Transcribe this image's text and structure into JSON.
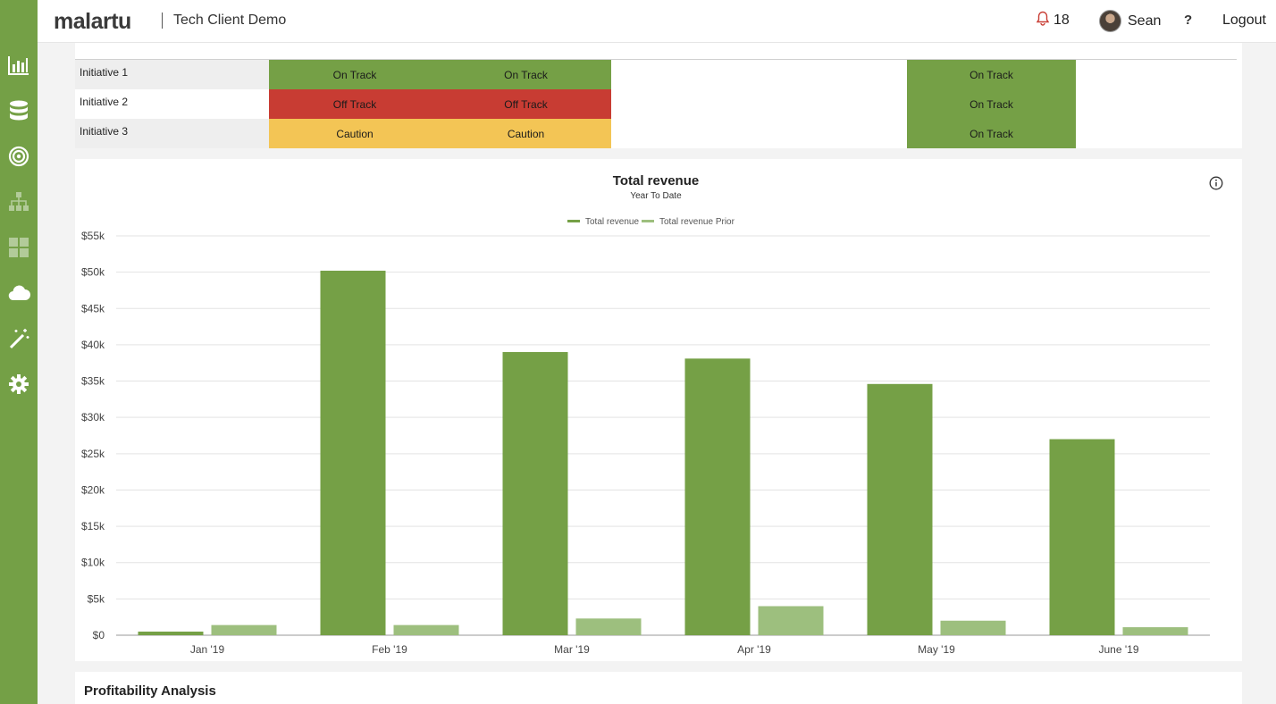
{
  "header": {
    "logo_text": "malartu",
    "client_name": "Tech Client Demo",
    "notification_count": "18",
    "user_name": "Sean",
    "help_label": "?",
    "logout_label": "Logout"
  },
  "sidebar": {
    "items": [
      {
        "icon": "bar-chart-icon"
      },
      {
        "icon": "database-icon"
      },
      {
        "icon": "target-icon"
      },
      {
        "icon": "org-chart-icon"
      },
      {
        "icon": "grid-icon"
      },
      {
        "icon": "cloud-icon"
      },
      {
        "icon": "magic-wand-icon"
      },
      {
        "icon": "gear-icon"
      }
    ]
  },
  "initiatives": {
    "rows": [
      {
        "label": "Initiative 1",
        "cells": [
          {
            "text": "On Track",
            "status": "green"
          },
          {
            "text": "On Track",
            "status": "green"
          },
          {
            "text": "On Track",
            "status": "green"
          }
        ]
      },
      {
        "label": "Initiative 2",
        "cells": [
          {
            "text": "Off Track",
            "status": "red"
          },
          {
            "text": "Off Track",
            "status": "red"
          },
          {
            "text": "On Track",
            "status": "green"
          }
        ]
      },
      {
        "label": "Initiative 3",
        "cells": [
          {
            "text": "Caution",
            "status": "yellow"
          },
          {
            "text": "Caution",
            "status": "yellow"
          },
          {
            "text": "On Track",
            "status": "green"
          }
        ]
      }
    ],
    "colors": {
      "green": "#75a046",
      "red": "#c83c33",
      "yellow": "#f3c555"
    }
  },
  "chart_data": {
    "type": "bar",
    "title": "Total revenue",
    "subtitle": "Year To Date",
    "categories": [
      "Jan '19",
      "Feb '19",
      "Mar '19",
      "Apr '19",
      "May '19",
      "June '19"
    ],
    "series": [
      {
        "name": "Total revenue",
        "color": "#75a046",
        "values": [
          500,
          50200,
          39000,
          38100,
          34600,
          27000
        ]
      },
      {
        "name": "Total revenue Prior",
        "color": "#9dbf7e",
        "values": [
          1400,
          1400,
          2300,
          4000,
          2000,
          1100
        ]
      }
    ],
    "ylim": [
      0,
      55000
    ],
    "yticks": [
      "$0",
      "$5k",
      "$10k",
      "$15k",
      "$20k",
      "$25k",
      "$30k",
      "$35k",
      "$40k",
      "$45k",
      "$50k",
      "$55k"
    ],
    "grid": true,
    "legend": "top-center"
  },
  "profitability": {
    "title": "Profitability Analysis"
  }
}
